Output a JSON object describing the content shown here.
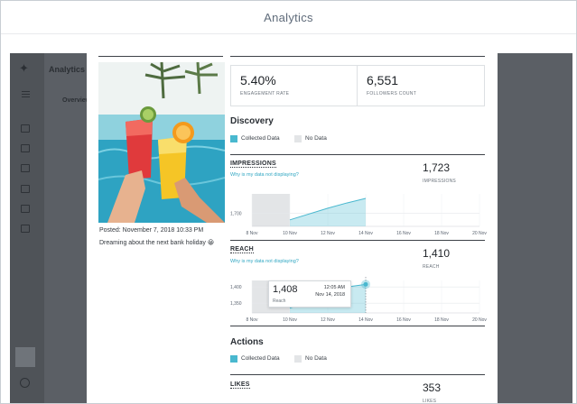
{
  "header": {
    "title": "Analytics"
  },
  "background_app": {
    "title": "Analytics",
    "tab": "Overview"
  },
  "post": {
    "date": "Posted: November 7, 2018 10:33 PM",
    "caption": "Dreaming about the next bank holiday 😀"
  },
  "summary": {
    "engagement_rate": {
      "value": "5.40%",
      "label": "ENGAGEMENT RATE"
    },
    "followers_count": {
      "value": "6,551",
      "label": "FOLLOWERS COUNT"
    }
  },
  "legend": {
    "collected": "Collected Data",
    "no_data": "No Data"
  },
  "discovery": {
    "title": "Discovery",
    "impressions": {
      "label": "IMPRESSIONS",
      "link": "Why is my data not displaying?",
      "value": "1,723",
      "value_label": "IMPRESSIONS"
    },
    "reach": {
      "label": "REACH",
      "link": "Why is my data not displaying?",
      "value": "1,410",
      "value_label": "REACH"
    }
  },
  "tooltip": {
    "value": "1,408",
    "unit": "Reach",
    "time": "12:05 AM",
    "date": "Nov 14, 2018"
  },
  "actions": {
    "title": "Actions",
    "likes": {
      "label": "LIKES",
      "value": "353",
      "value_label": "LIKES"
    }
  },
  "colors": {
    "accent": "#49b8cf",
    "no_data": "#e3e5e7",
    "link": "#2fa6c2"
  },
  "chart_data": [
    {
      "type": "area",
      "title": "IMPRESSIONS",
      "x": [
        "8 Nov",
        "10 Nov",
        "12 Nov",
        "14 Nov",
        "16 Nov",
        "18 Nov",
        "20 Nov"
      ],
      "y_ticks": [
        1700
      ],
      "no_data_range": [
        "8 Nov",
        "10 Nov"
      ],
      "series": [
        {
          "values": [
            {
              "x": "10 Nov",
              "y": 1690
            },
            {
              "x": "12 Nov",
              "y": 1708
            },
            {
              "x": "13 Nov",
              "y": 1716
            },
            {
              "x": "14 Nov",
              "y": 1723
            }
          ]
        }
      ],
      "ylim": [
        1680,
        1730
      ],
      "grid": true
    },
    {
      "type": "area",
      "title": "REACH",
      "x": [
        "8 Nov",
        "10 Nov",
        "12 Nov",
        "14 Nov",
        "16 Nov",
        "18 Nov",
        "20 Nov"
      ],
      "y_ticks": [
        1350,
        1400
      ],
      "no_data_range": [
        "8 Nov",
        "10 Nov"
      ],
      "series": [
        {
          "values": [
            {
              "x": "10 Nov",
              "y": 1335
            },
            {
              "x": "12 Nov",
              "y": 1375
            },
            {
              "x": "13 Nov",
              "y": 1400
            },
            {
              "x": "14 Nov",
              "y": 1408
            }
          ]
        }
      ],
      "highlight": {
        "x": "14 Nov",
        "y": 1408
      },
      "ylim": [
        1320,
        1420
      ],
      "grid": true
    }
  ]
}
